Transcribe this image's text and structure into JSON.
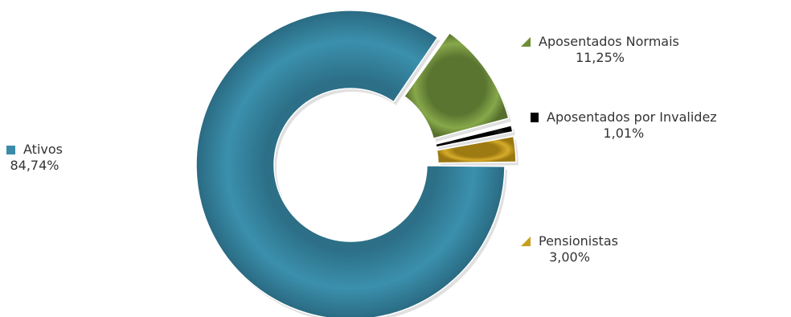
{
  "chart_data": {
    "type": "pie",
    "variant": "donut",
    "title": "",
    "slices": [
      {
        "name": "Ativos",
        "value": 84.74,
        "label": "84,74%",
        "color": "#3a8ca8"
      },
      {
        "name": "Aposentados Normais",
        "value": 11.25,
        "label": "11,25%",
        "color": "#7a9a3c"
      },
      {
        "name": "Aposentados por Invalidez",
        "value": 1.01,
        "label": "1,01%",
        "color": "#111111"
      },
      {
        "name": "Pensionistas",
        "value": 3.0,
        "label": "3,00%",
        "color": "#c9a01e"
      }
    ]
  }
}
